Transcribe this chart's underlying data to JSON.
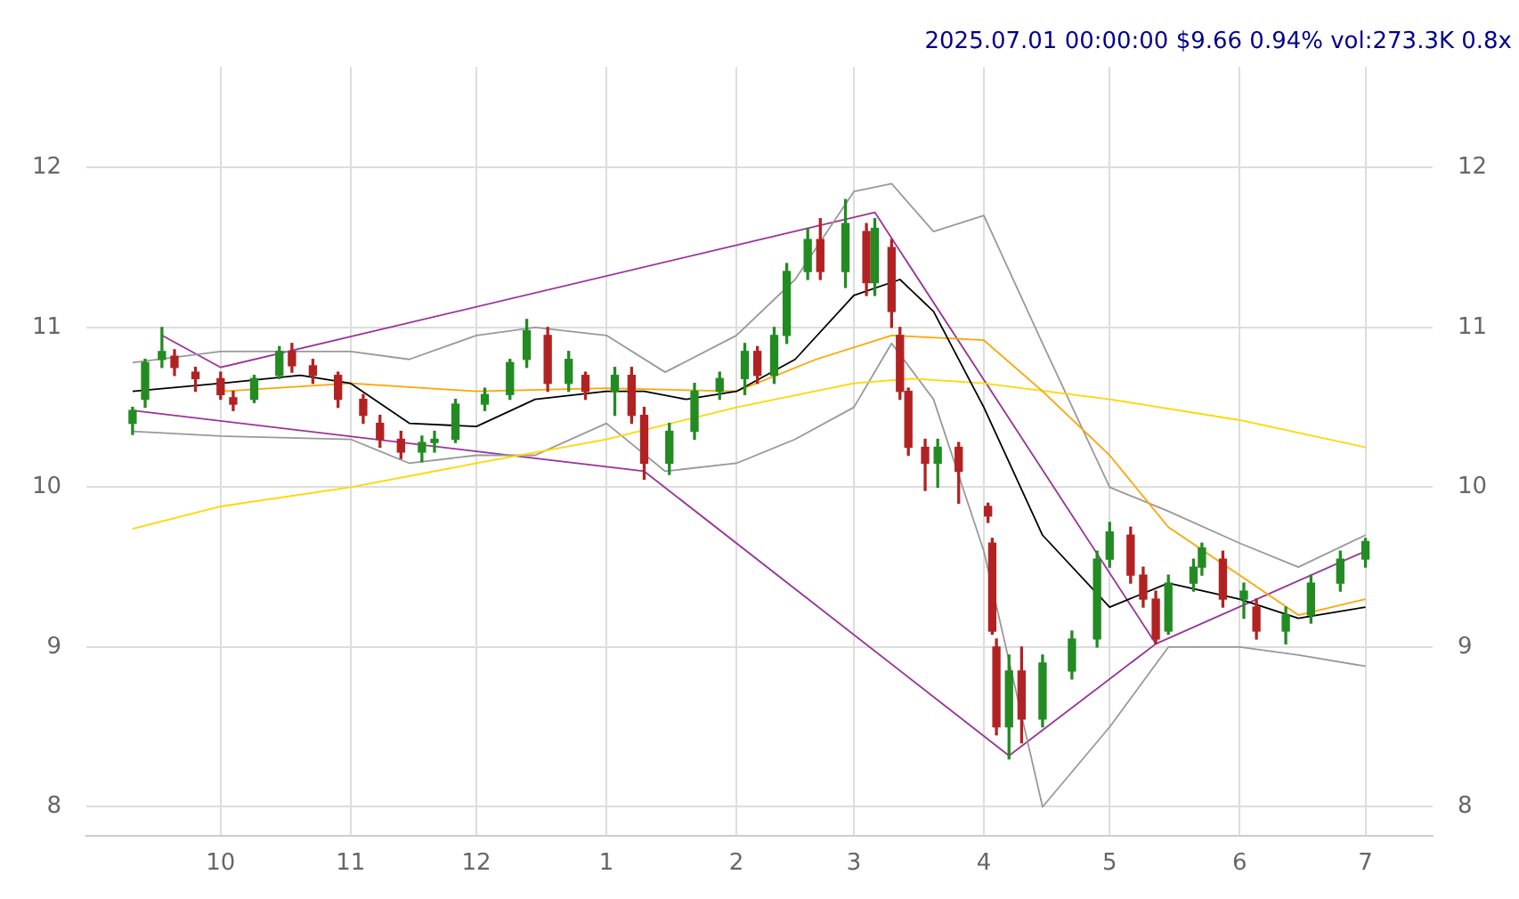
{
  "chart_data": {
    "type": "candlestick",
    "title": "2025.07.01 00:00:00 $9.66 0.94% vol:273.3K 0.8x",
    "x": [
      "2024-09-10",
      "2024-09-13",
      "2024-09-17",
      "2024-09-20",
      "2024-09-25",
      "2024-10-01",
      "2024-10-04",
      "2024-10-09",
      "2024-10-15",
      "2024-10-18",
      "2024-10-23",
      "2024-10-29",
      "2024-11-04",
      "2024-11-08",
      "2024-11-13",
      "2024-11-18",
      "2024-11-21",
      "2024-11-26",
      "2024-12-03",
      "2024-12-09",
      "2024-12-13",
      "2024-12-18",
      "2024-12-23",
      "2024-12-27",
      "2025-01-03",
      "2025-01-07",
      "2025-01-10",
      "2025-01-16",
      "2025-01-22",
      "2025-01-28",
      "2025-02-03",
      "2025-02-06",
      "2025-02-10",
      "2025-02-13",
      "2025-02-18",
      "2025-02-21",
      "2025-02-27",
      "2025-03-04",
      "2025-03-06",
      "2025-03-10",
      "2025-03-12",
      "2025-03-14",
      "2025-03-18",
      "2025-03-21",
      "2025-03-26",
      "2025-04-02",
      "2025-04-03",
      "2025-04-04",
      "2025-04-07",
      "2025-04-10",
      "2025-04-15",
      "2025-04-22",
      "2025-04-28",
      "2025-05-01",
      "2025-05-06",
      "2025-05-09",
      "2025-05-12",
      "2025-05-15",
      "2025-05-21",
      "2025-05-23",
      "2025-05-28",
      "2025-06-02",
      "2025-06-05",
      "2025-06-12",
      "2025-06-18",
      "2025-06-25",
      "2025-07-01"
    ],
    "ohlc": [
      [
        10.4,
        10.5,
        10.33,
        10.48
      ],
      [
        10.55,
        10.8,
        10.5,
        10.78
      ],
      [
        10.8,
        11.0,
        10.75,
        10.85
      ],
      [
        10.82,
        10.86,
        10.7,
        10.75
      ],
      [
        10.72,
        10.75,
        10.6,
        10.68
      ],
      [
        10.68,
        10.72,
        10.55,
        10.58
      ],
      [
        10.56,
        10.6,
        10.48,
        10.52
      ],
      [
        10.55,
        10.7,
        10.53,
        10.68
      ],
      [
        10.7,
        10.88,
        10.68,
        10.85
      ],
      [
        10.85,
        10.9,
        10.72,
        10.76
      ],
      [
        10.76,
        10.8,
        10.65,
        10.7
      ],
      [
        10.7,
        10.72,
        10.5,
        10.55
      ],
      [
        10.55,
        10.58,
        10.4,
        10.45
      ],
      [
        10.4,
        10.45,
        10.25,
        10.3
      ],
      [
        10.3,
        10.35,
        10.18,
        10.22
      ],
      [
        10.22,
        10.32,
        10.16,
        10.28
      ],
      [
        10.28,
        10.35,
        10.22,
        10.3
      ],
      [
        10.3,
        10.55,
        10.28,
        10.52
      ],
      [
        10.52,
        10.62,
        10.48,
        10.58
      ],
      [
        10.58,
        10.8,
        10.55,
        10.78
      ],
      [
        10.8,
        11.05,
        10.75,
        10.98
      ],
      [
        10.95,
        11.0,
        10.6,
        10.65
      ],
      [
        10.65,
        10.85,
        10.6,
        10.8
      ],
      [
        10.7,
        10.72,
        10.55,
        10.6
      ],
      [
        10.6,
        10.75,
        10.45,
        10.7
      ],
      [
        10.7,
        10.75,
        10.4,
        10.45
      ],
      [
        10.45,
        10.5,
        10.05,
        10.15
      ],
      [
        10.15,
        10.4,
        10.08,
        10.35
      ],
      [
        10.35,
        10.65,
        10.3,
        10.6
      ],
      [
        10.6,
        10.72,
        10.55,
        10.68
      ],
      [
        10.68,
        10.9,
        10.58,
        10.85
      ],
      [
        10.85,
        10.88,
        10.65,
        10.7
      ],
      [
        10.7,
        11.0,
        10.65,
        10.95
      ],
      [
        10.95,
        11.4,
        10.9,
        11.35
      ],
      [
        11.35,
        11.62,
        11.3,
        11.55
      ],
      [
        11.55,
        11.68,
        11.3,
        11.35
      ],
      [
        11.35,
        11.8,
        11.25,
        11.65
      ],
      [
        11.6,
        11.65,
        11.2,
        11.28
      ],
      [
        11.28,
        11.68,
        11.2,
        11.62
      ],
      [
        11.5,
        11.55,
        11.0,
        11.1
      ],
      [
        10.95,
        11.0,
        10.55,
        10.6
      ],
      [
        10.6,
        10.62,
        10.2,
        10.25
      ],
      [
        10.25,
        10.3,
        9.98,
        10.15
      ],
      [
        10.15,
        10.3,
        10.0,
        10.25
      ],
      [
        10.25,
        10.28,
        9.9,
        10.1
      ],
      [
        9.88,
        9.9,
        9.78,
        9.82
      ],
      [
        9.65,
        9.68,
        9.08,
        9.1
      ],
      [
        9.0,
        9.05,
        8.45,
        8.5
      ],
      [
        8.5,
        8.95,
        8.3,
        8.85
      ],
      [
        8.85,
        9.0,
        8.4,
        8.55
      ],
      [
        8.55,
        8.95,
        8.5,
        8.9
      ],
      [
        8.85,
        9.1,
        8.8,
        9.05
      ],
      [
        9.05,
        9.6,
        9.0,
        9.55
      ],
      [
        9.55,
        9.78,
        9.5,
        9.72
      ],
      [
        9.7,
        9.75,
        9.4,
        9.45
      ],
      [
        9.45,
        9.5,
        9.25,
        9.3
      ],
      [
        9.3,
        9.35,
        9.02,
        9.05
      ],
      [
        9.1,
        9.45,
        9.08,
        9.4
      ],
      [
        9.4,
        9.55,
        9.35,
        9.5
      ],
      [
        9.5,
        9.65,
        9.45,
        9.62
      ],
      [
        9.55,
        9.6,
        9.25,
        9.3
      ],
      [
        9.3,
        9.4,
        9.18,
        9.35
      ],
      [
        9.25,
        9.3,
        9.05,
        9.1
      ],
      [
        9.1,
        9.25,
        9.02,
        9.2
      ],
      [
        9.2,
        9.45,
        9.15,
        9.4
      ],
      [
        9.4,
        9.6,
        9.35,
        9.55
      ],
      [
        9.55,
        9.68,
        9.5,
        9.66
      ]
    ],
    "colors": [
      "#228b22",
      "#228b22",
      "#228b22",
      "#b22222",
      "#b22222",
      "#b22222",
      "#b22222",
      "#228b22",
      "#228b22",
      "#b22222",
      "#b22222",
      "#b22222",
      "#b22222",
      "#b22222",
      "#b22222",
      "#228b22",
      "#228b22",
      "#228b22",
      "#228b22",
      "#228b22",
      "#228b22",
      "#b22222",
      "#228b22",
      "#b22222",
      "#228b22",
      "#b22222",
      "#b22222",
      "#228b22",
      "#228b22",
      "#228b22",
      "#228b22",
      "#b22222",
      "#228b22",
      "#228b22",
      "#228b22",
      "#b22222",
      "#228b22",
      "#b22222",
      "#228b22",
      "#b22222",
      "#b22222",
      "#b22222",
      "#b22222",
      "#228b22",
      "#b22222",
      "#b22222",
      "#b22222",
      "#b22222",
      "#228b22",
      "#b22222",
      "#228b22",
      "#228b22",
      "#228b22",
      "#228b22",
      "#b22222",
      "#b22222",
      "#b22222",
      "#228b22",
      "#228b22",
      "#228b22",
      "#b22222",
      "#228b22",
      "#b22222",
      "#228b22",
      "#228b22",
      "#228b22",
      "#228b22"
    ],
    "series": [
      {
        "type": "line",
        "color": "#000000",
        "x": [
          "2024-09-10",
          "2024-10-01",
          "2024-10-20",
          "2024-11-01",
          "2024-11-15",
          "2024-12-01",
          "2024-12-15",
          "2025-01-01",
          "2025-01-10",
          "2025-01-20",
          "2025-02-01",
          "2025-02-15",
          "2025-03-01",
          "2025-03-12",
          "2025-03-20",
          "2025-04-01",
          "2025-04-15",
          "2025-05-01",
          "2025-05-15",
          "2025-06-01",
          "2025-06-15",
          "2025-07-01"
        ],
        "values": [
          10.6,
          10.65,
          10.7,
          10.65,
          10.4,
          10.38,
          10.55,
          10.6,
          10.6,
          10.55,
          10.6,
          10.8,
          11.2,
          11.3,
          11.1,
          10.5,
          9.7,
          9.25,
          9.4,
          9.3,
          9.18,
          9.25
        ]
      },
      {
        "type": "line",
        "color": "#ffa500",
        "x": [
          "2024-10-01",
          "2024-11-01",
          "2024-12-01",
          "2025-01-01",
          "2025-02-01",
          "2025-02-20",
          "2025-03-10",
          "2025-04-01",
          "2025-04-15",
          "2025-05-01",
          "2025-05-15",
          "2025-06-01",
          "2025-06-15",
          "2025-07-01"
        ],
        "values": [
          10.6,
          10.65,
          10.6,
          10.62,
          10.6,
          10.8,
          10.95,
          10.92,
          10.6,
          10.2,
          9.75,
          9.45,
          9.2,
          9.3
        ]
      },
      {
        "type": "line",
        "color": "#ffd700",
        "x": [
          "2024-09-10",
          "2024-10-01",
          "2024-11-01",
          "2024-12-01",
          "2025-01-01",
          "2025-02-01",
          "2025-03-01",
          "2025-03-15",
          "2025-04-01",
          "2025-05-01",
          "2025-06-01",
          "2025-07-01"
        ],
        "values": [
          9.74,
          9.88,
          10.0,
          10.15,
          10.3,
          10.5,
          10.65,
          10.68,
          10.65,
          10.55,
          10.42,
          10.25
        ]
      },
      {
        "type": "line",
        "color": "#999999",
        "x": [
          "2024-09-10",
          "2024-10-01",
          "2024-11-01",
          "2024-11-15",
          "2024-12-01",
          "2024-12-15",
          "2025-01-01",
          "2025-01-15",
          "2025-02-01",
          "2025-02-15",
          "2025-03-01",
          "2025-03-10",
          "2025-03-20",
          "2025-04-01",
          "2025-04-15",
          "2025-05-01",
          "2025-05-15",
          "2025-06-01",
          "2025-06-15",
          "2025-07-01"
        ],
        "values": [
          10.78,
          10.85,
          10.85,
          10.8,
          10.95,
          11.0,
          10.95,
          10.72,
          10.95,
          11.3,
          11.85,
          11.9,
          11.6,
          11.7,
          10.9,
          10.0,
          9.85,
          9.65,
          9.5,
          9.7
        ]
      },
      {
        "type": "line",
        "color": "#999999",
        "x": [
          "2024-09-10",
          "2024-10-01",
          "2024-11-01",
          "2024-11-15",
          "2024-12-01",
          "2024-12-15",
          "2025-01-01",
          "2025-01-15",
          "2025-02-01",
          "2025-02-15",
          "2025-03-01",
          "2025-03-10",
          "2025-03-20",
          "2025-04-01",
          "2025-04-15",
          "2025-05-01",
          "2025-05-15",
          "2025-06-01",
          "2025-06-15",
          "2025-07-01"
        ],
        "values": [
          10.35,
          10.32,
          10.3,
          10.15,
          10.2,
          10.2,
          10.4,
          10.1,
          10.15,
          10.3,
          10.5,
          10.9,
          10.55,
          9.6,
          8.0,
          8.5,
          9.0,
          9.0,
          8.95,
          8.88
        ]
      },
      {
        "type": "line",
        "color": "#993399",
        "x": [
          "2024-09-10",
          "2025-01-10",
          "2025-04-07",
          "2025-05-12",
          "2025-07-01"
        ],
        "values": [
          10.48,
          10.1,
          8.32,
          9.02,
          9.6
        ]
      },
      {
        "type": "line",
        "color": "#993399",
        "x": [
          "2024-09-17",
          "2024-10-01",
          "2025-03-06",
          "2025-05-12"
        ],
        "values": [
          10.95,
          10.75,
          11.72,
          9.02
        ]
      }
    ],
    "xlim": [
      "2024-08-30",
      "2025-07-17"
    ],
    "xticks": [
      {
        "value": "2024-10-01",
        "label": "10"
      },
      {
        "value": "2024-11-01",
        "label": "11"
      },
      {
        "value": "2024-12-01",
        "label": "12"
      },
      {
        "value": "2025-01-01",
        "label": "1"
      },
      {
        "value": "2025-02-01",
        "label": "2"
      },
      {
        "value": "2025-03-01",
        "label": "3"
      },
      {
        "value": "2025-04-01",
        "label": "4"
      },
      {
        "value": "2025-05-01",
        "label": "5"
      },
      {
        "value": "2025-06-01",
        "label": "6"
      },
      {
        "value": "2025-07-01",
        "label": "7"
      }
    ],
    "ylim": [
      7.82,
      12.63
    ],
    "yticks": [
      8,
      9,
      10,
      11,
      12
    ],
    "y2lim": [
      7.82,
      12.63
    ],
    "y2ticks": [
      8,
      9,
      10,
      11,
      12
    ],
    "grid": true,
    "legend": false
  }
}
